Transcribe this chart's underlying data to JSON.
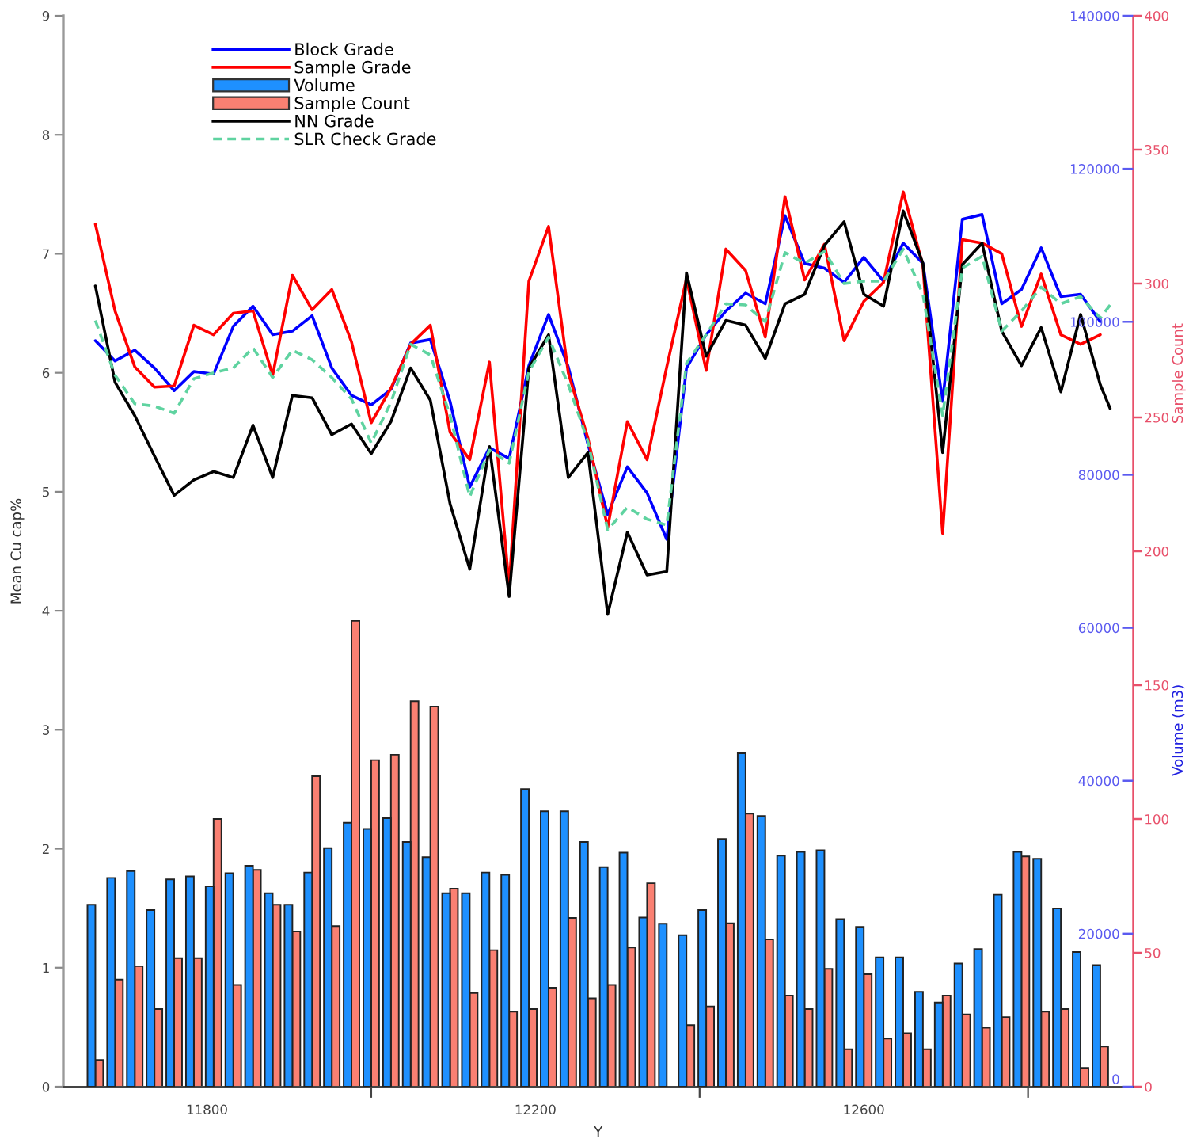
{
  "chart_data": {
    "type": "line",
    "xlabel": "Y",
    "ylabel": "Mean Cu cap%",
    "y2label": "Volume (m3)",
    "y3label": "Sample Count",
    "x": [
      11664,
      11688,
      11712,
      11736,
      11760,
      11784,
      11808,
      11832,
      11856,
      11880,
      11904,
      11928,
      11952,
      11976,
      12000,
      12024,
      12048,
      12072,
      12096,
      12120,
      12144,
      12168,
      12192,
      12216,
      12240,
      12264,
      12288,
      12312,
      12336,
      12360,
      12384,
      12408,
      12432,
      12456,
      12480,
      12504,
      12528,
      12552,
      12576,
      12600,
      12624,
      12648,
      12672,
      12696,
      12720,
      12744,
      12768,
      12792,
      12816,
      12840,
      12864,
      12888
    ],
    "xlim": [
      11625,
      12928
    ],
    "xticks": [
      11800,
      {
        "value": 12000,
        "label": null
      },
      12200,
      {
        "value": 12400,
        "label": null
      },
      12600,
      {
        "value": 12800,
        "label": null
      }
    ],
    "ylim": [
      0,
      9
    ],
    "yticks": [
      0,
      1,
      2,
      3,
      4,
      5,
      6,
      7,
      8,
      9
    ],
    "y2lim": [
      0,
      140000
    ],
    "y2ticks": [
      0,
      20000,
      40000,
      60000,
      80000,
      100000,
      120000,
      140000
    ],
    "y3lim": [
      0,
      400
    ],
    "y3ticks": [
      0,
      50,
      100,
      150,
      200,
      250,
      300,
      350,
      400
    ],
    "legend": "top left",
    "series": [
      {
        "name": "Block Grade",
        "color": "#0000ff",
        "values": [
          6.27,
          6.1,
          6.19,
          6.04,
          5.85,
          6.01,
          5.99,
          6.39,
          6.56,
          6.32,
          6.35,
          6.48,
          6.04,
          5.81,
          5.73,
          5.86,
          6.25,
          6.28,
          5.76,
          5.04,
          5.37,
          5.28,
          6.06,
          6.49,
          6.05,
          5.4,
          4.81,
          5.21,
          4.99,
          4.6,
          6.04,
          6.32,
          6.52,
          6.67,
          6.58,
          7.32,
          6.92,
          6.88,
          6.76,
          6.97,
          6.77,
          7.09,
          6.92,
          5.76,
          7.29,
          7.33,
          6.58,
          6.7,
          7.05,
          6.64,
          6.66,
          6.43
        ]
      },
      {
        "name": "Sample Grade",
        "color": "#ff0000",
        "values": [
          7.25,
          6.52,
          6.05,
          5.88,
          5.89,
          6.4,
          6.32,
          6.5,
          6.52,
          5.98,
          6.82,
          6.53,
          6.7,
          6.26,
          5.58,
          5.87,
          6.24,
          6.4,
          5.5,
          5.27,
          6.09,
          4.2,
          6.77,
          7.23,
          6.0,
          5.45,
          4.7,
          5.59,
          5.27,
          6.05,
          6.79,
          6.02,
          7.04,
          6.86,
          6.3,
          7.48,
          6.78,
          7.08,
          6.27,
          6.6,
          6.76,
          7.52,
          6.9,
          4.65,
          7.12,
          7.09,
          7.0,
          6.39,
          6.83,
          6.32,
          6.24,
          6.32
        ]
      },
      {
        "name": "Volume",
        "type": "bar",
        "axis": "y2",
        "color": "#1e90ff",
        "values": [
          23800,
          27300,
          28200,
          23100,
          27100,
          27500,
          26200,
          27900,
          28900,
          25300,
          23800,
          28000,
          31200,
          34500,
          33700,
          35100,
          32000,
          30000,
          25300,
          25300,
          28000,
          27700,
          38900,
          36000,
          36000,
          32000,
          28700,
          30600,
          22100,
          21300,
          19800,
          23100,
          32400,
          43600,
          35400,
          30200,
          30700,
          30900,
          21900,
          20900,
          16900,
          16900,
          12400,
          11000,
          16100,
          18000,
          25100,
          30700,
          29800,
          23300,
          17600,
          15900
        ]
      },
      {
        "name": "Sample Count",
        "type": "bar",
        "axis": "y3",
        "color": "#fa8072",
        "values": [
          10,
          40,
          45,
          29,
          48,
          48,
          100,
          38,
          81,
          68,
          58,
          116,
          60,
          174,
          122,
          124,
          144,
          142,
          74,
          35,
          51,
          28,
          29,
          37,
          63,
          33,
          38,
          52,
          76,
          null,
          23,
          30,
          61,
          102,
          55,
          34,
          29,
          44,
          14,
          42,
          18,
          20,
          14,
          34,
          27,
          22,
          26,
          86,
          28,
          29,
          7,
          15
        ]
      },
      {
        "name": "NN Grade",
        "color": "#000000",
        "x": [
          11664,
          11688,
          11712,
          11736,
          11760,
          11784,
          11808,
          11832,
          11856,
          11880,
          11904,
          11928,
          11952,
          11976,
          12000,
          12024,
          12048,
          12072,
          12096,
          12120,
          12144,
          12168,
          12192,
          12216,
          12240,
          12264,
          12288,
          12312,
          12336,
          12360,
          12384,
          12408,
          12432,
          12456,
          12480,
          12504,
          12528,
          12552,
          12576,
          12600,
          12624,
          12648,
          12672,
          12696,
          12720,
          12744,
          12768,
          12792,
          12816,
          12840,
          12864,
          12888,
          12900
        ],
        "values": [
          6.73,
          5.92,
          5.64,
          5.3,
          4.97,
          5.1,
          5.17,
          5.12,
          5.56,
          5.12,
          5.81,
          5.79,
          5.48,
          5.57,
          5.32,
          5.59,
          6.04,
          5.77,
          4.9,
          4.35,
          5.38,
          4.12,
          6.04,
          6.32,
          5.12,
          5.33,
          3.97,
          4.66,
          4.3,
          4.33,
          6.84,
          6.14,
          6.44,
          6.4,
          6.12,
          6.58,
          6.66,
          7.07,
          7.27,
          6.66,
          6.56,
          7.36,
          6.92,
          5.33,
          6.91,
          7.09,
          6.35,
          6.06,
          6.38,
          5.84,
          6.49,
          5.9,
          5.7
        ]
      },
      {
        "name": "SLR Check Grade",
        "color": "#5fd3a0",
        "line_style": "dashed",
        "x": [
          11664,
          11688,
          11712,
          11736,
          11760,
          11784,
          11808,
          11832,
          11856,
          11880,
          11904,
          11928,
          11952,
          11976,
          12000,
          12024,
          12048,
          12072,
          12096,
          12120,
          12144,
          12168,
          12192,
          12216,
          12240,
          12264,
          12288,
          12312,
          12336,
          12360,
          12384,
          12408,
          12432,
          12456,
          12480,
          12504,
          12528,
          12552,
          12576,
          12600,
          12624,
          12648,
          12672,
          12696,
          12720,
          12744,
          12768,
          12792,
          12816,
          12840,
          12864,
          12888,
          12900
        ],
        "values": [
          6.44,
          5.98,
          5.74,
          5.72,
          5.66,
          5.95,
          6.0,
          6.04,
          6.21,
          5.96,
          6.19,
          6.11,
          5.96,
          5.78,
          5.41,
          5.75,
          6.24,
          6.15,
          5.64,
          4.96,
          5.35,
          5.24,
          6.01,
          6.3,
          5.9,
          5.42,
          4.68,
          4.87,
          4.77,
          4.72,
          6.08,
          6.32,
          6.58,
          6.57,
          6.43,
          7.01,
          6.92,
          7.02,
          6.75,
          6.77,
          6.77,
          7.04,
          6.66,
          5.64,
          6.88,
          6.98,
          6.35,
          6.52,
          6.72,
          6.58,
          6.64,
          6.46,
          6.57
        ]
      }
    ]
  }
}
